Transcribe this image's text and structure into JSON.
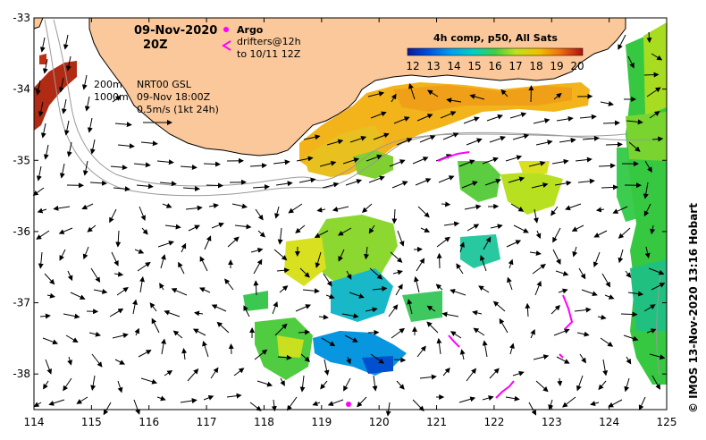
{
  "header": {
    "date": "09-Nov-2020",
    "hour": "20Z"
  },
  "legend": {
    "argo_label": "Argo",
    "drifters_line1": "drifters@12h",
    "drifters_line2": "to 10/11 12Z",
    "contour_200": "200m",
    "contour_1000": "1000m",
    "source": "NRT00 GSL",
    "source_time": "09-Nov 18:00Z",
    "scale_label": "0.5m/s (1kt 24h)"
  },
  "colorbar": {
    "title": "4h comp, p50, All Sats",
    "ticks": [
      "12",
      "13",
      "14",
      "15",
      "16",
      "17",
      "18",
      "19",
      "20"
    ],
    "min": 12,
    "max": 20
  },
  "axes": {
    "lon_ticks": [
      "114",
      "115",
      "116",
      "117",
      "118",
      "119",
      "120",
      "121",
      "122",
      "123",
      "124",
      "125"
    ],
    "lat_ticks": [
      "-33",
      "-34",
      "-35",
      "-36",
      "-37",
      "-38"
    ],
    "lon_range": [
      114,
      125
    ],
    "lat_range": [
      -38.5,
      -33
    ]
  },
  "credit": "IMOS 13-Nov-2020 13:16 Hobart",
  "colors": {
    "land": "#fac89a",
    "drifter": "#ff00ff",
    "argo": "#ff00ff"
  }
}
